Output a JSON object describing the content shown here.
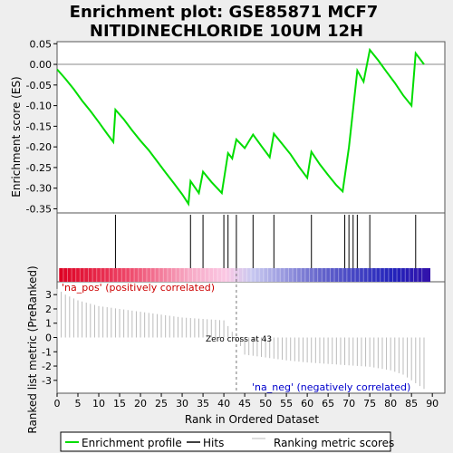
{
  "chart_data": {
    "type": "line",
    "title_lines": [
      "Enrichment plot: GSE85871 MCF7",
      "NITIDINECHLORIDE 10UM 12H"
    ],
    "top_panel": {
      "ylabel": "Enrichment score (ES)",
      "ylim": [
        -0.36,
        0.055
      ],
      "yticks": [
        0.05,
        0.0,
        -0.05,
        -0.1,
        -0.15,
        -0.2,
        -0.25,
        -0.3,
        -0.35
      ],
      "ytick_labels": [
        "0.05",
        "0.00",
        "-0.05",
        "-0.10",
        "-0.15",
        "-0.20",
        "-0.25",
        "-0.30",
        "-0.35"
      ],
      "series_name": "Enrichment profile",
      "series_color": "#00dd00",
      "x": [
        0,
        2,
        4,
        6,
        8,
        10,
        12,
        13.5,
        14,
        16,
        18,
        20,
        22,
        24,
        26,
        28,
        30,
        31.5,
        32,
        34,
        35,
        37,
        39.5,
        41,
        42,
        43,
        45,
        47,
        49,
        51,
        52,
        54,
        56,
        58,
        60,
        61,
        63,
        65,
        67,
        68.5,
        70,
        72,
        73.5,
        75,
        77,
        79,
        81,
        83,
        85,
        86,
        88
      ],
      "y": [
        -0.012,
        -0.035,
        -0.06,
        -0.088,
        -0.113,
        -0.14,
        -0.168,
        -0.188,
        -0.11,
        -0.133,
        -0.16,
        -0.185,
        -0.208,
        -0.235,
        -0.262,
        -0.288,
        -0.315,
        -0.338,
        -0.283,
        -0.312,
        -0.26,
        -0.285,
        -0.312,
        -0.215,
        -0.228,
        -0.182,
        -0.203,
        -0.17,
        -0.198,
        -0.225,
        -0.168,
        -0.193,
        -0.218,
        -0.248,
        -0.275,
        -0.212,
        -0.242,
        -0.268,
        -0.293,
        -0.308,
        -0.2,
        -0.015,
        -0.042,
        0.035,
        0.01,
        -0.018,
        -0.045,
        -0.075,
        -0.1,
        0.027,
        0.0
      ]
    },
    "hits": {
      "series_name": "Hits",
      "x": [
        14,
        32,
        35,
        40,
        41,
        43,
        47,
        52,
        61,
        69,
        70,
        71,
        72,
        75,
        86
      ]
    },
    "bottom_panel": {
      "ylabel": "Ranked list metric (PreRanked)",
      "xlabel": "Rank in Ordered Dataset",
      "ylim": [
        -3.9,
        3.9
      ],
      "yticks": [
        3,
        2,
        1,
        0,
        -1,
        -2,
        -3
      ],
      "ytick_labels": [
        "3",
        "2",
        "1",
        "0",
        "-1",
        "-2",
        "-3"
      ],
      "xlim": [
        0,
        93
      ],
      "xticks": [
        0,
        5,
        10,
        15,
        20,
        25,
        30,
        35,
        40,
        45,
        50,
        55,
        60,
        65,
        70,
        75,
        80,
        85,
        90
      ],
      "xtick_labels": [
        "0",
        "5",
        "10",
        "15",
        "20",
        "25",
        "30",
        "35",
        "40",
        "45",
        "50",
        "55",
        "60",
        "65",
        "70",
        "75",
        "80",
        "85",
        "90"
      ],
      "series_name": "Ranking metric scores",
      "metric_x": [
        0,
        2,
        5,
        10,
        15,
        20,
        25,
        30,
        35,
        40,
        43,
        45,
        50,
        55,
        60,
        65,
        70,
        75,
        80,
        83,
        85,
        87,
        88
      ],
      "metric_y": [
        3.4,
        3.0,
        2.6,
        2.2,
        2.0,
        1.8,
        1.6,
        1.4,
        1.3,
        1.2,
        0.0,
        -1.2,
        -1.4,
        -1.6,
        -1.75,
        -1.85,
        -1.95,
        -2.05,
        -2.3,
        -2.6,
        -3.0,
        -3.4,
        -3.6
      ],
      "zero_cross_label": "Zero cross at 43",
      "zero_cross_x": 43,
      "pos_label": "'na_pos' (positively correlated)",
      "neg_label": "'na_neg' (negatively correlated)",
      "pos_color": "#cc0000",
      "neg_color": "#0000cc"
    },
    "legend": {
      "placement": "bottom",
      "items": [
        {
          "label": "Enrichment profile",
          "color": "#00dd00"
        },
        {
          "label": "Hits",
          "color": "#000000"
        },
        {
          "label": "Ranking metric scores",
          "color": "#bbbbbb"
        }
      ]
    }
  }
}
